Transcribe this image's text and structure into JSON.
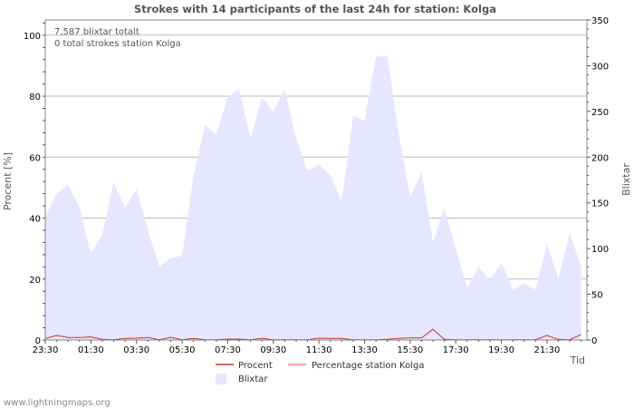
{
  "chart_data": {
    "type": "area",
    "title": "Strokes with 14 participants of the last 24h for station: Kolga",
    "xlabel": "Tid",
    "ylabel_left": "Procent   [%]",
    "ylabel_right": "Blixtar",
    "ylim_left": [
      0,
      105
    ],
    "ylim_right": [
      0,
      350
    ],
    "left_ticks": [
      0,
      20,
      40,
      60,
      80,
      100
    ],
    "right_ticks": [
      0,
      50,
      100,
      150,
      200,
      250,
      300,
      350
    ],
    "x_ticks": [
      "23:30",
      "01:30",
      "03:30",
      "05:30",
      "07:30",
      "09:30",
      "11:30",
      "13:30",
      "15:30",
      "17:30",
      "19:30",
      "21:30"
    ],
    "x_tick_steps": [
      0,
      4,
      8,
      12,
      16,
      20,
      24,
      28,
      32,
      36,
      40,
      44
    ],
    "x_steps_total": 47.5,
    "series": [
      {
        "name": "Blixtar",
        "axis": "right",
        "color": "#e6e6ff",
        "values": [
          135,
          160,
          170,
          145,
          95,
          115,
          172,
          145,
          165,
          120,
          80,
          90,
          92,
          180,
          235,
          225,
          265,
          275,
          220,
          265,
          250,
          275,
          220,
          185,
          192,
          180,
          152,
          245,
          240,
          310,
          310,
          225,
          157,
          183,
          107,
          145,
          100,
          57,
          80,
          65,
          85,
          55,
          62,
          55,
          105,
          67,
          117,
          80
        ]
      },
      {
        "name": "Procent",
        "axis": "left",
        "color": "#cc3333",
        "values": [
          0.5,
          1.5,
          0.8,
          0.8,
          1.0,
          0.2,
          0.1,
          0.5,
          0.6,
          0.8,
          0.1,
          0.9,
          0.1,
          0.5,
          0.1,
          0.1,
          0.3,
          0.3,
          0.1,
          0.5,
          0.1,
          0.1,
          0.1,
          0.1,
          0.6,
          0.5,
          0.5,
          0.1,
          0.1,
          0.1,
          0.2,
          0.5,
          0.7,
          0.7,
          3.5,
          0.2,
          0.1,
          0.1,
          0.1,
          0.1,
          0.1,
          0.1,
          0.1,
          0.1,
          1.5,
          0.2,
          0.1,
          1.8
        ]
      },
      {
        "name": "Percentage station Kolga",
        "axis": "left",
        "color": "#ff8888",
        "values": [
          0,
          0,
          0,
          0,
          0,
          0,
          0,
          0,
          0,
          0,
          0,
          0,
          0,
          0,
          0,
          0,
          0,
          0,
          0,
          0,
          0,
          0,
          0,
          0,
          0,
          0,
          0,
          0,
          0,
          0,
          0,
          0,
          0,
          0,
          0,
          0,
          0,
          0,
          0,
          0,
          0,
          0,
          0,
          0,
          0,
          0,
          0,
          0
        ]
      }
    ],
    "legend": {
      "procent": "Procent",
      "station": "Percentage station Kolga",
      "blixtar": "Blixtar"
    },
    "annotations": {
      "total": "7,587 blixtar totalt",
      "station": "0 total strokes station Kolga"
    },
    "grid": true
  },
  "footer": {
    "watermark": "www.lightningmaps.org"
  },
  "colors": {
    "plot_border": "#888888",
    "grid": "#bbbbbb",
    "procent_line": "#cc3333",
    "station_line": "#ff8888",
    "blixtar_fill": "#e6e6ff"
  }
}
